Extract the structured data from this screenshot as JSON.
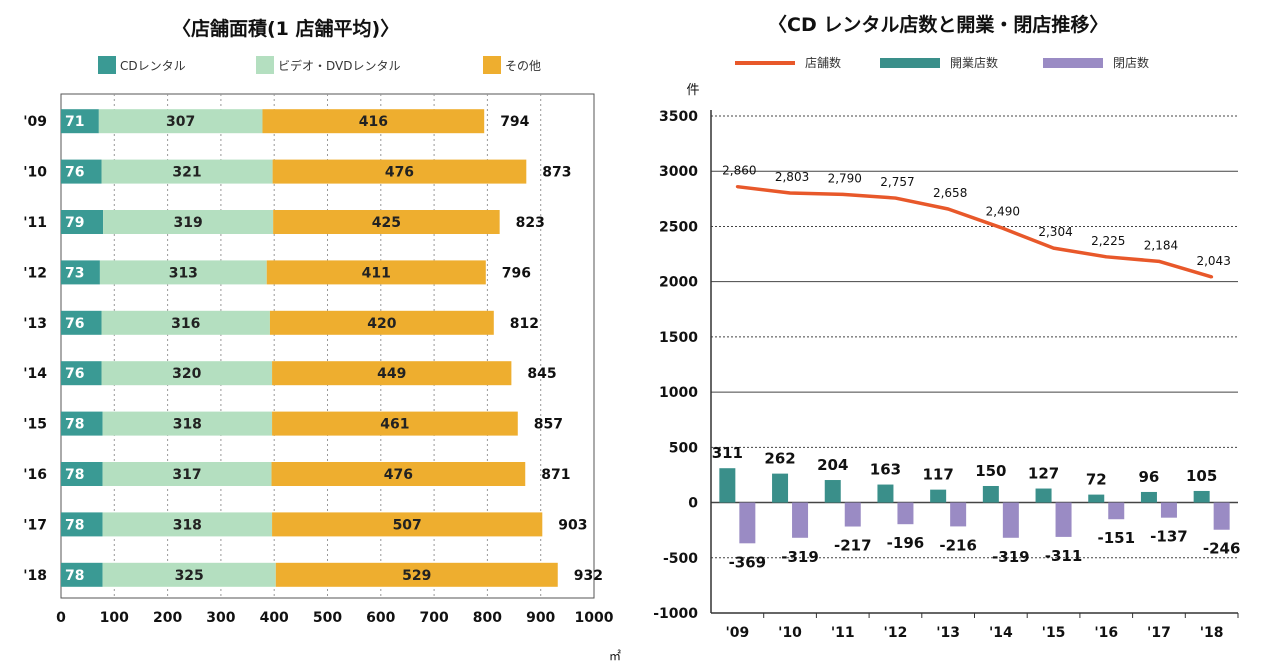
{
  "chart_data": [
    {
      "type": "bar",
      "orientation": "horizontal",
      "stacked": true,
      "title": "〈店舗面積(1 店舗平均)〉",
      "unit": "㎡",
      "categories": [
        "'09",
        "'10",
        "'11",
        "'12",
        "'13",
        "'14",
        "'15",
        "'16",
        "'17",
        "'18"
      ],
      "series": [
        {
          "name": "CDレンタル",
          "color": "#3a9a94",
          "values": [
            71,
            76,
            79,
            73,
            76,
            76,
            78,
            78,
            78,
            78
          ]
        },
        {
          "name": "ビデオ・DVDレンタル",
          "color": "#b4dfc0",
          "values": [
            307,
            321,
            319,
            313,
            316,
            320,
            318,
            317,
            318,
            325
          ]
        },
        {
          "name": "その他",
          "color": "#eeae2f",
          "values": [
            416,
            476,
            425,
            411,
            420,
            449,
            461,
            476,
            507,
            529
          ]
        }
      ],
      "totals": [
        794,
        873,
        823,
        796,
        812,
        845,
        857,
        871,
        903,
        932
      ],
      "xlim": [
        0,
        1000
      ],
      "xticks": [
        "0",
        "100",
        "200",
        "300",
        "400",
        "500",
        "600",
        "700",
        "800",
        "900",
        "1000"
      ],
      "legend": "top",
      "grid": "vertical dotted"
    },
    {
      "type": "bar+line",
      "title": "〈CD レンタル店数と開業・閉店推移〉",
      "ylabel": "件",
      "categories": [
        "'09",
        "'10",
        "'11",
        "'12",
        "'13",
        "'14",
        "'15",
        "'16",
        "'17",
        "'18"
      ],
      "line": {
        "name": "店舗数",
        "color": "#e8582a",
        "values": [
          2860,
          2803,
          2790,
          2757,
          2658,
          2490,
          2304,
          2225,
          2184,
          2043
        ],
        "labels": [
          "2,860",
          "2,803",
          "2,790",
          "2,757",
          "2,658",
          "2,490",
          "2,304",
          "2,225",
          "2,184",
          "2,043"
        ]
      },
      "series": [
        {
          "name": "開業店数",
          "color": "#3a8f8a",
          "values": [
            311,
            262,
            204,
            163,
            117,
            150,
            127,
            72,
            96,
            105
          ]
        },
        {
          "name": "閉店数",
          "color": "#9a8bc4",
          "values": [
            -369,
            -319,
            -217,
            -196,
            -216,
            -319,
            -311,
            -151,
            -137,
            -246
          ]
        }
      ],
      "ylim": [
        -1000,
        3500
      ],
      "yticks": [
        "3500",
        "3000",
        "2500",
        "2000",
        "1500",
        "1000",
        "500",
        "0",
        "-500",
        "-1000"
      ],
      "legend": "top",
      "grid": "horizontal"
    }
  ]
}
